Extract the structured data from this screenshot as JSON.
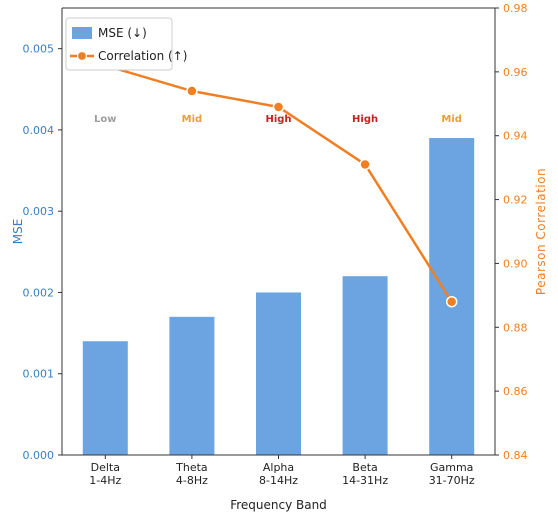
{
  "chart_data": {
    "type": "bar",
    "categories": [
      "Delta\n1-4Hz",
      "Theta\n4-8Hz",
      "Alpha\n8-14Hz",
      "Beta\n14-31Hz",
      "Gamma\n31-70Hz"
    ],
    "xlabel": "Frequency Band",
    "ylabel_left": "MSE",
    "ylabel_right": "Pearson Correlation",
    "ylim_left": [
      0,
      0.0055
    ],
    "yticks_left": [
      "0.000",
      "0.001",
      "0.002",
      "0.003",
      "0.004",
      "0.005"
    ],
    "ylim_right": [
      0.84,
      0.98
    ],
    "yticks_right": [
      "0.84",
      "0.86",
      "0.88",
      "0.90",
      "0.92",
      "0.94",
      "0.96",
      "0.98"
    ],
    "series": [
      {
        "name": "MSE (↓)",
        "type": "bar",
        "axis": "left",
        "values": [
          0.0014,
          0.0017,
          0.002,
          0.0022,
          0.0039
        ]
      },
      {
        "name": "Correlation (↑)",
        "type": "line",
        "axis": "right",
        "values": [
          0.962,
          0.954,
          0.949,
          0.931,
          0.888
        ]
      }
    ],
    "annotations": [
      {
        "category": 0,
        "text": "Low",
        "color": "#9e9e9e"
      },
      {
        "category": 1,
        "text": "Mid",
        "color": "#e8a22a"
      },
      {
        "category": 2,
        "text": "High",
        "color": "#cc1f1f"
      },
      {
        "category": 3,
        "text": "High",
        "color": "#cc1f1f"
      },
      {
        "category": 4,
        "text": "Mid",
        "color": "#e8a22a"
      }
    ],
    "legend_position": "top-left",
    "grid": false,
    "colors": {
      "bar": "#6ba4e0",
      "line": "#f07f23",
      "left_axis": "#3a7fc2",
      "right_axis": "#f07f23"
    }
  }
}
